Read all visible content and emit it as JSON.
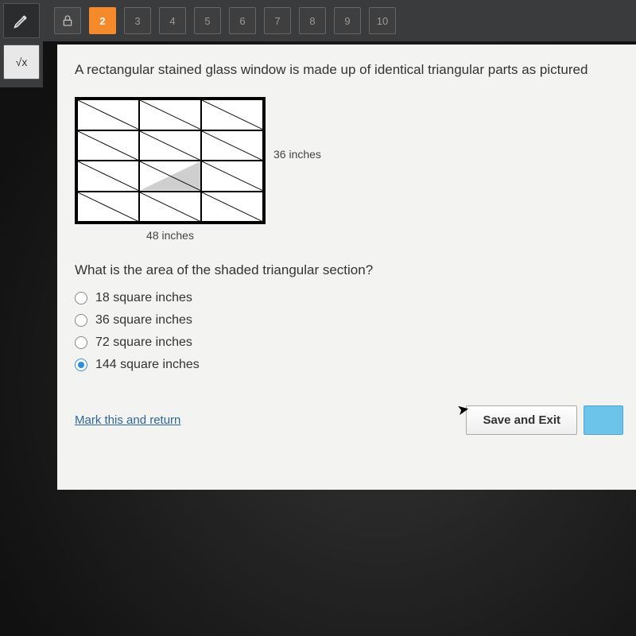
{
  "toolbar": {
    "pencil_label": "pencil",
    "sqrt_label": "√x",
    "lock_label": "lock",
    "questions": [
      "2",
      "3",
      "4",
      "5",
      "6",
      "7",
      "8",
      "9",
      "10"
    ],
    "active_question": "2"
  },
  "question": {
    "text": "A rectangular stained glass window is made up of identical triangular parts as pictured",
    "sub_text": "What is the area of the shaded triangular section?",
    "dimensions": {
      "width_label": "48 inches",
      "height_label": "36 inches"
    }
  },
  "diagram": {
    "cols": 3,
    "rows": 4,
    "outer_stroke": "#000000",
    "bg": "#ffffff",
    "shaded_cell": {
      "row": 2,
      "col": 1
    },
    "shaded_fill": "#cfcfcf"
  },
  "options": [
    {
      "label": "18 square inches",
      "selected": false
    },
    {
      "label": "36 square inches",
      "selected": false
    },
    {
      "label": "72 square inches",
      "selected": false
    },
    {
      "label": "144 square inches",
      "selected": true
    }
  ],
  "footer": {
    "mark_link": "Mark this and return",
    "save_exit": "Save and Exit"
  },
  "colors": {
    "accent_orange": "#f6892a",
    "accent_blue": "#2e8fd8",
    "toolbar_bg": "#3a3b3c",
    "content_bg": "#f3f3f1"
  }
}
